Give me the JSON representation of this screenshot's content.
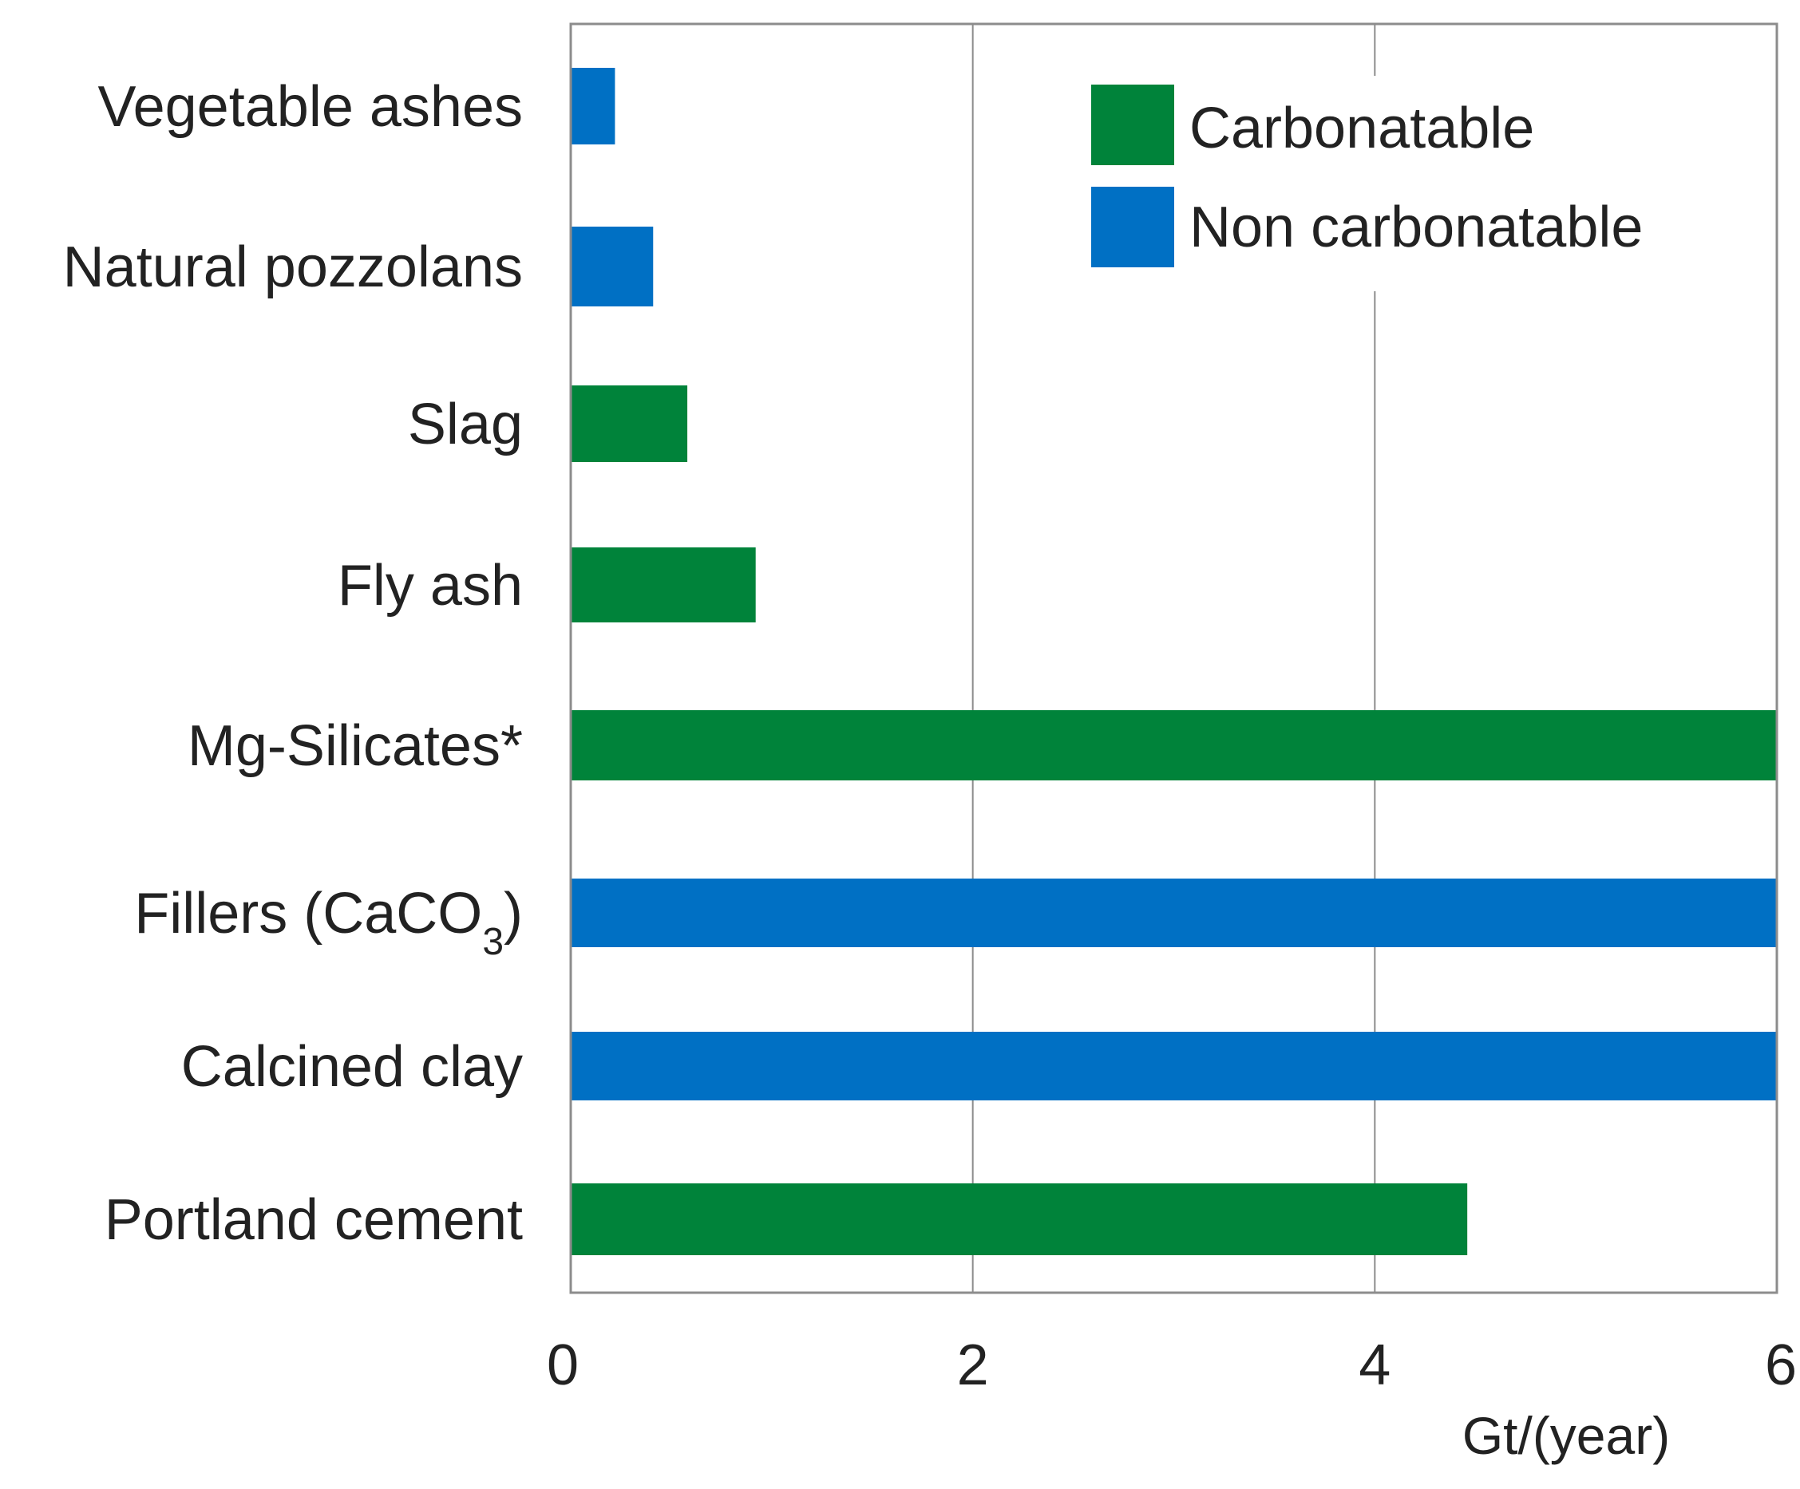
{
  "chart_data": {
    "type": "bar",
    "orientation": "horizontal",
    "title": "",
    "xlabel": "Gt/(year)",
    "ylabel": "",
    "xlim": [
      0,
      6
    ],
    "xticks": [
      0,
      2,
      4,
      6
    ],
    "grid": true,
    "legend_position": "top-right",
    "categories": [
      {
        "base": "Vegetable ashes",
        "sub": "",
        "suffix": ""
      },
      {
        "base": "Natural pozzolans",
        "sub": "",
        "suffix": ""
      },
      {
        "base": "Slag",
        "sub": "",
        "suffix": ""
      },
      {
        "base": "Fly ash",
        "sub": "",
        "suffix": ""
      },
      {
        "base": "Mg-Silicates*",
        "sub": "",
        "suffix": ""
      },
      {
        "base": "Fillers (CaCO",
        "sub": "3",
        "suffix": ")"
      },
      {
        "base": "Calcined clay",
        "sub": "",
        "suffix": ""
      },
      {
        "base": "Portland cement",
        "sub": "",
        "suffix": ""
      }
    ],
    "values": [
      0.22,
      0.41,
      0.58,
      0.92,
      6.0,
      6.0,
      6.0,
      4.46
    ],
    "groups": [
      "Non carbonatable",
      "Non carbonatable",
      "Carbonatable",
      "Carbonatable",
      "Carbonatable",
      "Non carbonatable",
      "Non carbonatable",
      "Carbonatable"
    ],
    "series": [
      {
        "name": "Carbonatable",
        "color": "#00833a"
      },
      {
        "name": "Non carbonatable",
        "color": "#0070c4"
      }
    ]
  },
  "colors": {
    "axis": "#8c8c8c",
    "grid": "#8c8c8c",
    "text": "#222222"
  }
}
